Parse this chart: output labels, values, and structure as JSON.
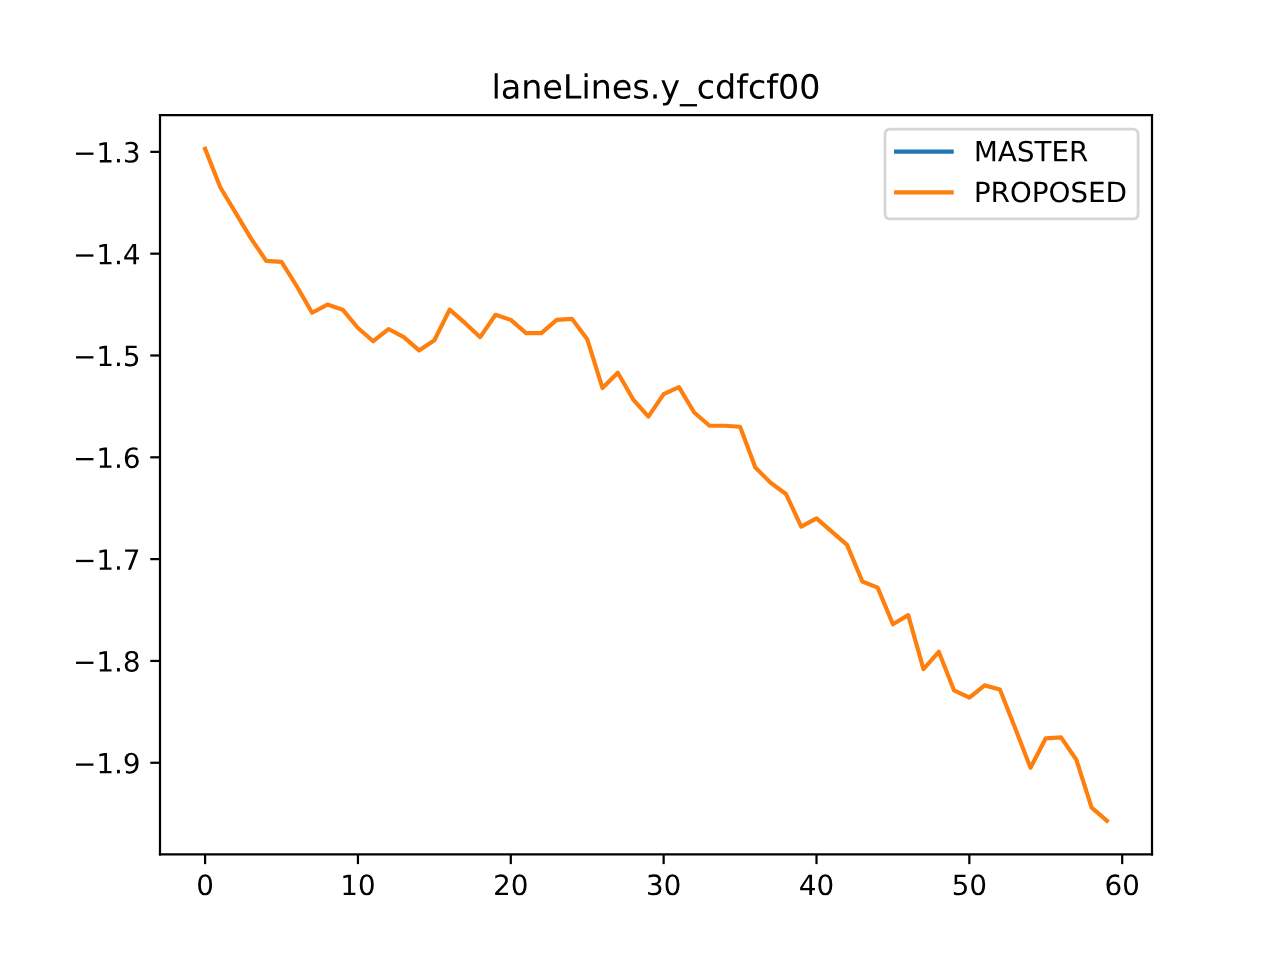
{
  "chart_data": {
    "type": "line",
    "title": "laneLines.y_cdfcf00",
    "x": [
      0,
      1,
      2,
      3,
      4,
      5,
      6,
      7,
      8,
      9,
      10,
      11,
      12,
      13,
      14,
      15,
      16,
      17,
      18,
      19,
      20,
      21,
      22,
      23,
      24,
      25,
      26,
      27,
      28,
      29,
      30,
      31,
      32,
      33,
      34,
      35,
      36,
      37,
      38,
      39,
      40,
      41,
      42,
      43,
      44,
      45,
      46,
      47,
      48,
      49,
      50,
      51,
      52,
      53,
      54,
      55,
      56,
      57,
      58,
      59
    ],
    "series": [
      {
        "name": "MASTER",
        "color": "#1f77b4",
        "values": [
          null,
          null,
          null,
          null,
          null,
          null,
          null,
          null,
          null,
          null,
          null,
          null,
          null,
          null,
          null,
          null,
          null,
          null,
          null,
          null,
          null,
          null,
          null,
          null,
          null,
          null,
          null,
          null,
          null,
          null,
          null,
          null,
          null,
          null,
          null,
          null,
          null,
          null,
          null,
          null,
          null,
          null,
          null,
          null,
          null,
          null,
          null,
          null,
          null,
          null,
          null,
          null,
          null,
          null,
          null,
          null,
          null,
          null,
          null,
          null
        ]
      },
      {
        "name": "PROPOSED",
        "color": "#ff7f0e",
        "values": [
          -1.297,
          -1.335,
          -1.36,
          -1.385,
          -1.407,
          -1.408,
          -1.432,
          -1.458,
          -1.45,
          -1.455,
          -1.473,
          -1.486,
          -1.474,
          -1.482,
          -1.495,
          -1.485,
          -1.455,
          -1.468,
          -1.482,
          -1.46,
          -1.465,
          -1.478,
          -1.478,
          -1.465,
          -1.464,
          -1.484,
          -1.532,
          -1.517,
          -1.543,
          -1.56,
          -1.538,
          -1.531,
          -1.556,
          -1.569,
          -1.569,
          -1.57,
          -1.61,
          -1.625,
          -1.636,
          -1.668,
          -1.66,
          -1.673,
          -1.686,
          -1.722,
          -1.728,
          -1.764,
          -1.755,
          -1.808,
          -1.791,
          -1.829,
          -1.836,
          -1.824,
          -1.828,
          -1.866,
          -1.905,
          -1.876,
          -1.875,
          -1.897,
          -1.944,
          -1.957
        ]
      }
    ],
    "xlim": [
      -2.95,
      61.95
    ],
    "xticks": [
      0,
      10,
      20,
      30,
      40,
      50,
      60
    ],
    "ylim": [
      -1.99,
      -1.264
    ],
    "yticks": [
      {
        "value": -1.9,
        "label": "−1.9"
      },
      {
        "value": -1.8,
        "label": "−1.8"
      },
      {
        "value": -1.7,
        "label": "−1.7"
      },
      {
        "value": -1.6,
        "label": "−1.6"
      },
      {
        "value": -1.5,
        "label": "−1.5"
      },
      {
        "value": -1.4,
        "label": "−1.4"
      },
      {
        "value": -1.3,
        "label": "−1.3"
      }
    ],
    "legend": "top right",
    "grid": false
  }
}
